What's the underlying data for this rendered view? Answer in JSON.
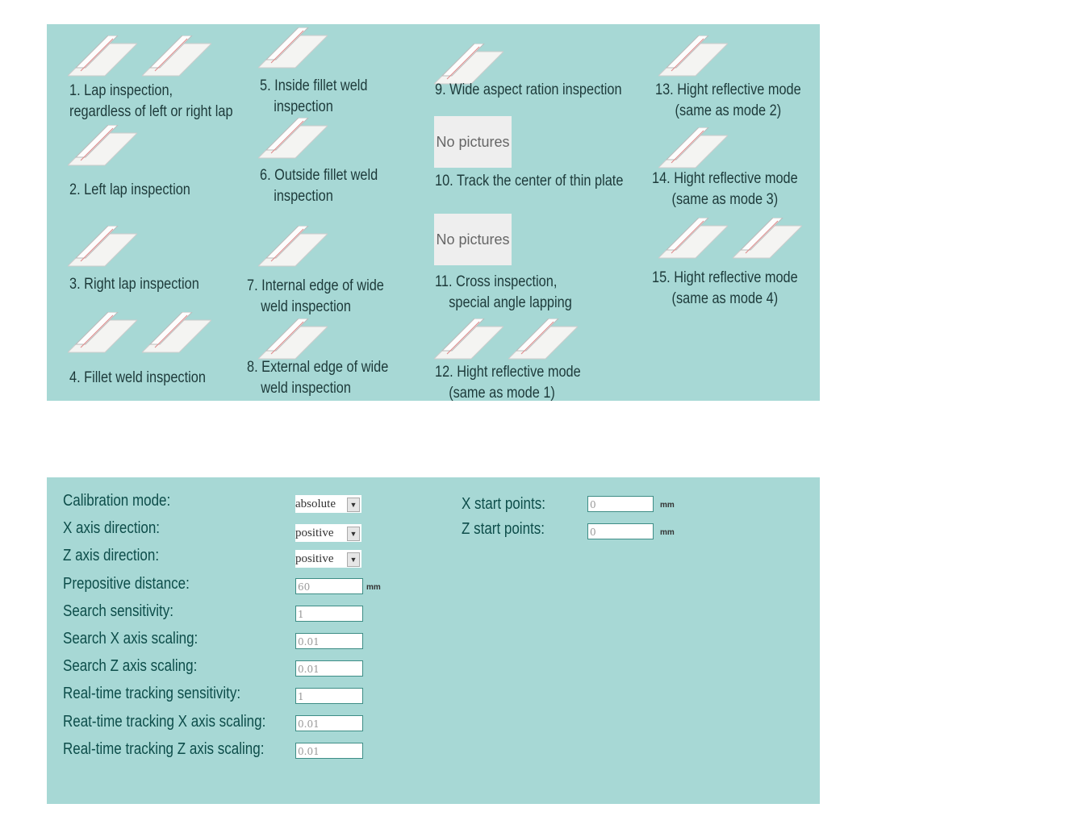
{
  "modes": [
    {
      "id": "1",
      "lines": [
        "1. Lap inspection,",
        "regardless of left or right lap"
      ]
    },
    {
      "id": "2",
      "lines": [
        "2. Left lap inspection"
      ]
    },
    {
      "id": "3",
      "lines": [
        "3. Right lap inspection"
      ]
    },
    {
      "id": "4",
      "lines": [
        "4. Fillet weld inspection"
      ]
    },
    {
      "id": "5",
      "lines": [
        "5. Inside fillet weld",
        "inspection"
      ]
    },
    {
      "id": "6",
      "lines": [
        "6. Outside fillet weld",
        "inspection"
      ]
    },
    {
      "id": "7",
      "lines": [
        "7. Internal edge of wide",
        "weld inspection"
      ]
    },
    {
      "id": "8",
      "lines": [
        "8. External edge of wide",
        "weld inspection"
      ]
    },
    {
      "id": "9",
      "lines": [
        "9. Wide aspect ration inspection"
      ]
    },
    {
      "id": "10",
      "lines": [
        "10. Track the center of thin plate"
      ]
    },
    {
      "id": "11",
      "lines": [
        "11. Cross inspection,",
        "special angle lapping"
      ]
    },
    {
      "id": "12",
      "lines": [
        "12. Hight reflective mode",
        "(same as mode 1)"
      ]
    },
    {
      "id": "13",
      "lines": [
        "13. Hight reflective mode",
        "(same as mode 2)"
      ]
    },
    {
      "id": "14",
      "lines": [
        "14. Hight reflective mode",
        "(same as mode 3)"
      ]
    },
    {
      "id": "15",
      "lines": [
        "15. Hight reflective mode",
        "(same as mode 4)"
      ]
    }
  ],
  "no_pictures": "No pictures",
  "form": {
    "calibration_mode": {
      "label": "Calibration mode:",
      "value": "absolute"
    },
    "x_axis_direction": {
      "label": "X axis direction:",
      "value": "positive"
    },
    "z_axis_direction": {
      "label": "Z axis direction:",
      "value": "positive"
    },
    "prepositive_distance": {
      "label": "Prepositive distance:",
      "value": "60",
      "unit": "mm"
    },
    "search_sensitivity": {
      "label": "Search sensitivity:",
      "value": "1"
    },
    "search_x_scaling": {
      "label": "Search X axis scaling:",
      "value": "0.01"
    },
    "search_z_scaling": {
      "label": "Search Z axis scaling:",
      "value": "0.01"
    },
    "rt_sensitivity": {
      "label": "Real-time tracking sensitivity:",
      "value": "1"
    },
    "rt_x_scaling": {
      "label": "Reat-time tracking X axis scaling:",
      "value": "0.01"
    },
    "rt_z_scaling": {
      "label": "Real-time tracking Z axis scaling:",
      "value": "0.01"
    },
    "x_start": {
      "label": "X start points:",
      "value": "0",
      "unit": "mm"
    },
    "z_start": {
      "label": "Z start points:",
      "value": "0",
      "unit": "mm"
    }
  },
  "colors": {
    "panel": "#a7d8d5",
    "text": "#0d4d4a"
  }
}
